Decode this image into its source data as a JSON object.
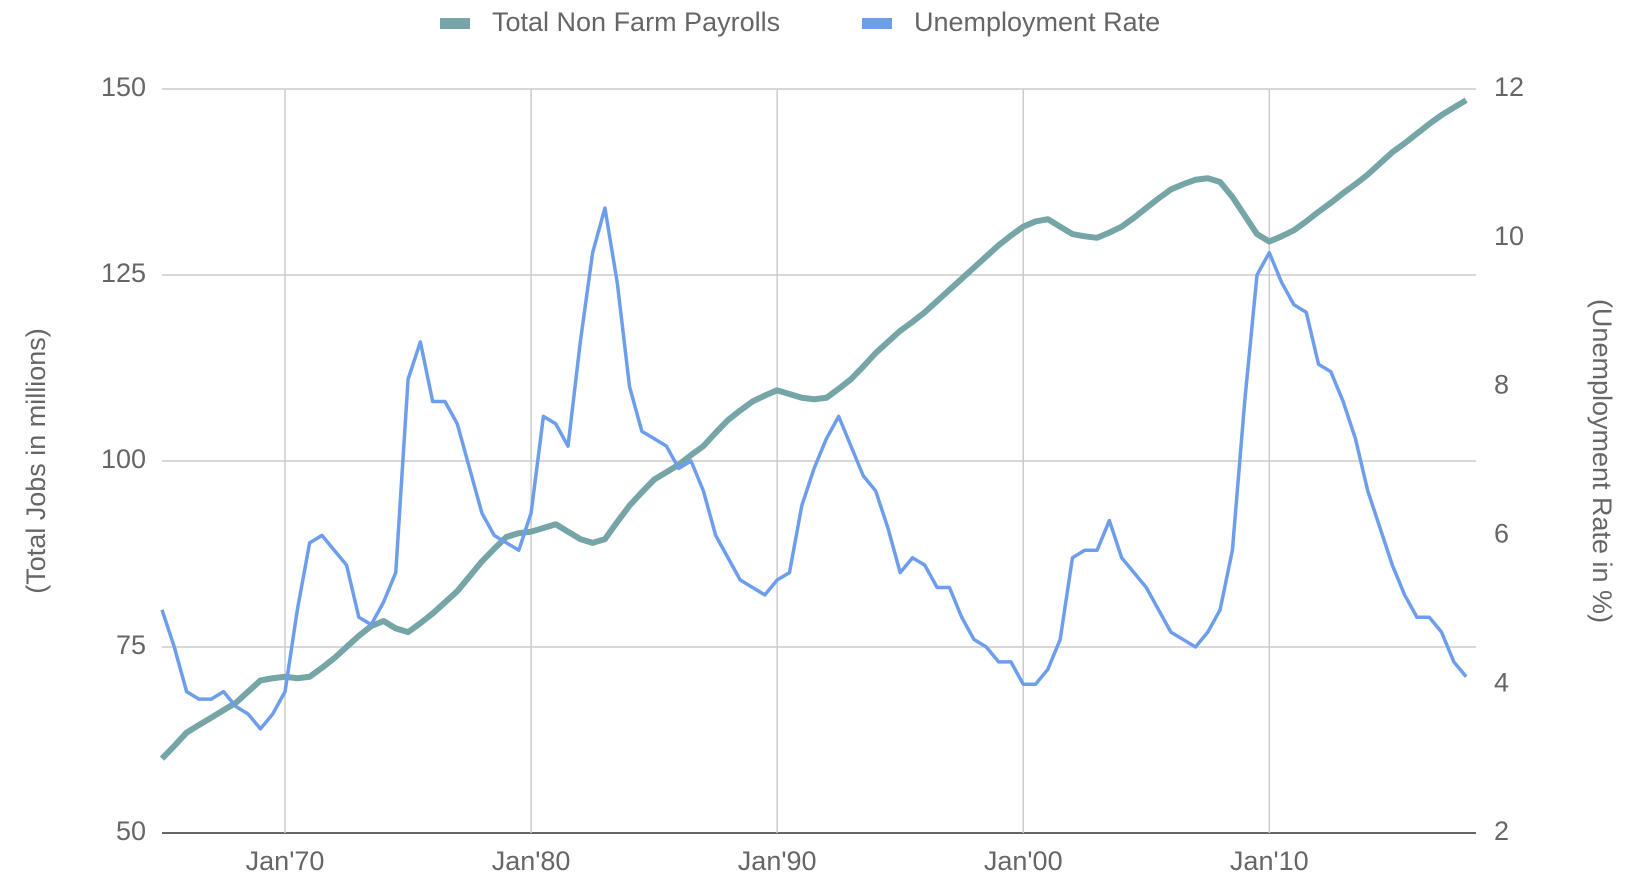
{
  "chart_data": {
    "type": "line",
    "y_label": "(Total Jobs in millions)",
    "y2_label": "(Unemployment Rate in %)",
    "x": [
      1965,
      1965.5,
      1966,
      1966.5,
      1967,
      1967.5,
      1968,
      1968.5,
      1969,
      1969.5,
      1970,
      1970.5,
      1971,
      1971.5,
      1972,
      1972.5,
      1973,
      1973.5,
      1974,
      1974.5,
      1975,
      1975.5,
      1976,
      1976.5,
      1977,
      1977.5,
      1978,
      1978.5,
      1979,
      1979.5,
      1980,
      1980.5,
      1981,
      1981.5,
      1982,
      1982.5,
      1983,
      1983.5,
      1984,
      1984.5,
      1985,
      1985.5,
      1986,
      1986.5,
      1987,
      1987.5,
      1988,
      1988.5,
      1989,
      1989.5,
      1990,
      1990.5,
      1991,
      1991.5,
      1992,
      1992.5,
      1993,
      1993.5,
      1994,
      1994.5,
      1995,
      1995.5,
      1996,
      1996.5,
      1997,
      1997.5,
      1998,
      1998.5,
      1999,
      1999.5,
      2000,
      2000.5,
      2001,
      2001.5,
      2002,
      2002.5,
      2003,
      2003.5,
      2004,
      2004.5,
      2005,
      2005.5,
      2006,
      2006.5,
      2007,
      2007.5,
      2008,
      2008.5,
      2009,
      2009.5,
      2010,
      2010.5,
      2011,
      2011.5,
      2012,
      2012.5,
      2013,
      2013.5,
      2014,
      2014.5,
      2015,
      2015.5,
      2016,
      2016.5,
      2017,
      2017.5,
      2018
    ],
    "series": [
      {
        "name": "Total Non Farm Payrolls",
        "color": "#76a5a8",
        "values": [
          60,
          61.7,
          63.5,
          64.5,
          65.5,
          66.5,
          67.5,
          69,
          70.5,
          70.8,
          71,
          70.8,
          71,
          72.2,
          73.5,
          75,
          76.5,
          77.8,
          78.5,
          77.5,
          77,
          78.2,
          79.5,
          81,
          82.5,
          84.5,
          86.5,
          88.2,
          89.8,
          90.3,
          90.5,
          91,
          91.5,
          90.5,
          89.5,
          89,
          89.5,
          91.8,
          94,
          95.8,
          97.5,
          98.5,
          99.5,
          100.8,
          102,
          103.8,
          105.5,
          106.8,
          108,
          108.8,
          109.5,
          109,
          108.5,
          108.3,
          108.5,
          109.7,
          111,
          112.7,
          114.5,
          116,
          117.5,
          118.7,
          120,
          121.5,
          123,
          124.5,
          126,
          127.5,
          129,
          130.3,
          131.5,
          132.2,
          132.5,
          131.5,
          130.5,
          130.2,
          130,
          130.7,
          131.5,
          132.7,
          134,
          135.3,
          136.5,
          137.2,
          137.8,
          138,
          137.5,
          135.5,
          133,
          130.5,
          129.5,
          130.2,
          131,
          132.2,
          133.5,
          134.7,
          136,
          137.2,
          138.5,
          140,
          141.5,
          142.7,
          144,
          145.3,
          146.5,
          147.5,
          148.5
        ]
      },
      {
        "name": "Unemployment Rate",
        "color": "#6d9eeb",
        "axis": "y2",
        "values": [
          5.0,
          4.5,
          3.9,
          3.8,
          3.8,
          3.9,
          3.7,
          3.6,
          3.4,
          3.6,
          3.9,
          5.0,
          5.9,
          6.0,
          5.8,
          5.6,
          4.9,
          4.8,
          5.1,
          5.5,
          8.1,
          8.6,
          7.8,
          7.8,
          7.5,
          6.9,
          6.3,
          6.0,
          5.9,
          5.8,
          6.3,
          7.6,
          7.5,
          7.2,
          8.6,
          9.8,
          10.4,
          9.4,
          8.0,
          7.4,
          7.3,
          7.2,
          6.9,
          7.0,
          6.6,
          6.0,
          5.7,
          5.4,
          5.3,
          5.2,
          5.4,
          5.5,
          6.4,
          6.9,
          7.3,
          7.6,
          7.2,
          6.8,
          6.6,
          6.1,
          5.5,
          5.7,
          5.6,
          5.3,
          5.3,
          4.9,
          4.6,
          4.5,
          4.3,
          4.3,
          4.0,
          4.0,
          4.2,
          4.6,
          5.7,
          5.8,
          5.8,
          6.2,
          5.7,
          5.5,
          5.3,
          5.0,
          4.7,
          4.6,
          4.5,
          4.7,
          5.0,
          5.8,
          7.8,
          9.5,
          9.8,
          9.4,
          9.1,
          9.0,
          8.3,
          8.2,
          7.8,
          7.3,
          6.6,
          6.1,
          5.6,
          5.2,
          4.9,
          4.9,
          4.7,
          4.3,
          4.1
        ]
      }
    ],
    "xlim": [
      1965,
      2018.4
    ],
    "xticks": [
      {
        "value": 1970,
        "label": "Jan'70"
      },
      {
        "value": 1980,
        "label": "Jan'80"
      },
      {
        "value": 1990,
        "label": "Jan'90"
      },
      {
        "value": 2000,
        "label": "Jan'00"
      },
      {
        "value": 2010,
        "label": "Jan'10"
      }
    ],
    "ylim": [
      50,
      150
    ],
    "yticks": [
      50,
      75,
      100,
      125,
      150
    ],
    "y2lim": [
      2,
      12
    ],
    "y2ticks": [
      2,
      4,
      6,
      8,
      10,
      12
    ],
    "grid": true,
    "legend": "top"
  }
}
